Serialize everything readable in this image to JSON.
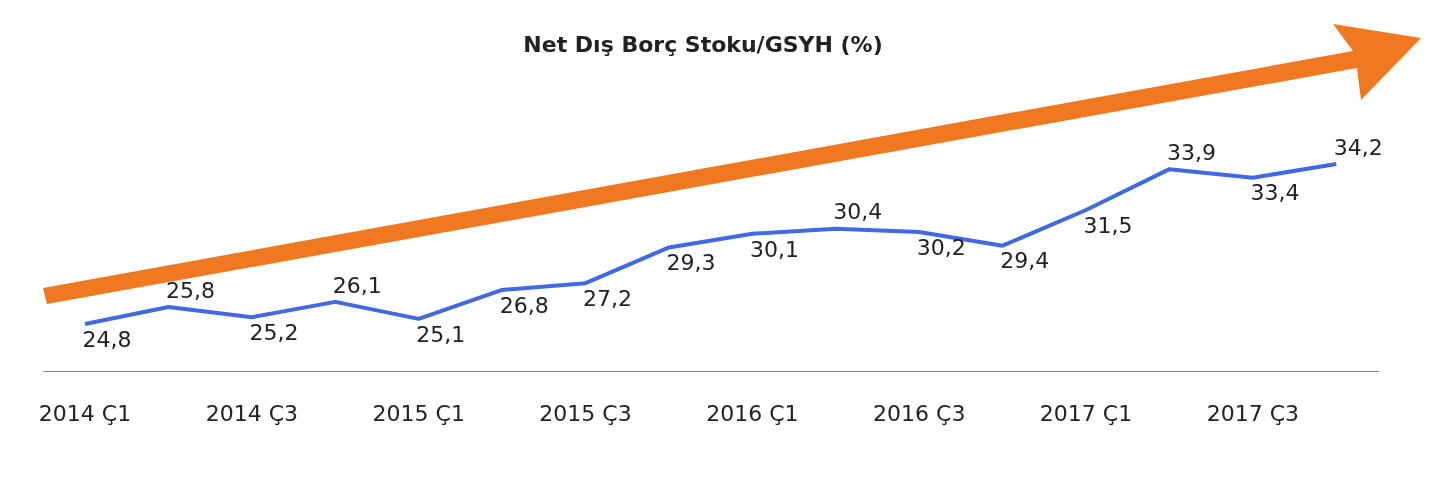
{
  "chart_data": {
    "type": "line",
    "title": "Net Dış Borç Stoku/GSYH (%)",
    "categories": [
      "2014 Ç1",
      null,
      "2014 Ç3",
      null,
      "2015 Ç1",
      null,
      "2015 Ç3",
      null,
      "2016 Ç1",
      null,
      "2016 Ç3",
      null,
      "2017 Ç1",
      null,
      "2017 Ç3",
      null
    ],
    "series": [
      {
        "color": "#4169e1",
        "values": [
          24.8,
          25.8,
          25.2,
          26.1,
          25.1,
          26.8,
          27.2,
          29.3,
          30.1,
          30.4,
          30.2,
          29.4,
          31.5,
          33.9,
          33.4,
          34.2
        ],
        "value_labels": [
          "24,8",
          "25,8",
          "25,2",
          "26,1",
          "25,1",
          "26,8",
          "27,2",
          "29,3",
          "30,1",
          "30,4",
          "30,2",
          "29,4",
          "31,5",
          "33,9",
          "33,4",
          "34,2"
        ]
      }
    ],
    "grid": false,
    "legend": false,
    "marker": "none",
    "line_style": "solid"
  }
}
